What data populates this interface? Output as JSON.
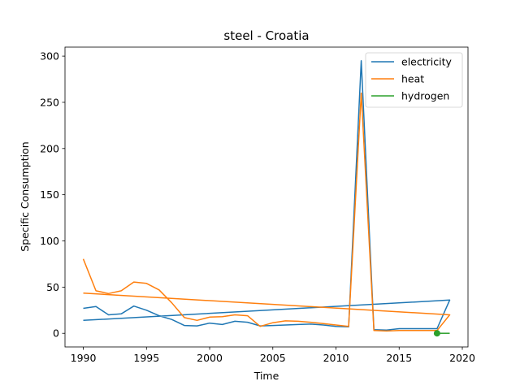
{
  "chart_data": {
    "type": "line",
    "title": "steel - Croatia",
    "xlabel": "Time",
    "ylabel": "Specific Consumption",
    "xlim": [
      1988.55,
      2020.45
    ],
    "ylim": [
      -14.75,
      309.75
    ],
    "xticks": [
      1990,
      1995,
      2000,
      2005,
      2010,
      2015,
      2020
    ],
    "yticks": [
      0,
      50,
      100,
      150,
      200,
      250,
      300
    ],
    "grid": false,
    "legend_position": "top-right",
    "series": [
      {
        "name": "electricity",
        "color": "#1f77b4",
        "points": [
          [
            1990,
            27
          ],
          [
            1991,
            29
          ],
          [
            1992,
            20
          ],
          [
            1993,
            21
          ],
          [
            1994,
            29.5
          ],
          [
            1995,
            25
          ],
          [
            1996,
            19
          ],
          [
            1997,
            15
          ],
          [
            1998,
            8.5
          ],
          [
            1999,
            8
          ],
          [
            2000,
            11
          ],
          [
            2001,
            9.5
          ],
          [
            2002,
            13
          ],
          [
            2003,
            12
          ],
          [
            2004,
            8
          ],
          [
            2005,
            8.5
          ],
          [
            2006,
            9
          ],
          [
            2007,
            9.5
          ],
          [
            2008,
            10
          ],
          [
            2009,
            9
          ],
          [
            2010,
            7.5
          ],
          [
            2011,
            7
          ],
          [
            2012,
            295
          ],
          [
            2013,
            4
          ],
          [
            2014,
            3.5
          ],
          [
            2015,
            5
          ],
          [
            2016,
            5
          ],
          [
            2017,
            5
          ],
          [
            2018,
            5
          ],
          [
            2019,
            36
          ],
          [
            1990,
            14
          ]
        ]
      },
      {
        "name": "heat",
        "color": "#ff7f0e",
        "points": [
          [
            1990,
            80.5
          ],
          [
            1991,
            46
          ],
          [
            1992,
            43
          ],
          [
            1993,
            46
          ],
          [
            1994,
            55.5
          ],
          [
            1995,
            54
          ],
          [
            1996,
            47
          ],
          [
            1997,
            33
          ],
          [
            1998,
            17
          ],
          [
            1999,
            14
          ],
          [
            2000,
            17.5
          ],
          [
            2001,
            18
          ],
          [
            2002,
            20
          ],
          [
            2003,
            19
          ],
          [
            2004,
            7.5
          ],
          [
            2005,
            11.5
          ],
          [
            2006,
            13.5
          ],
          [
            2007,
            13
          ],
          [
            2008,
            12
          ],
          [
            2009,
            10.5
          ],
          [
            2010,
            9
          ],
          [
            2011,
            7.5
          ],
          [
            2012,
            260
          ],
          [
            2013,
            3
          ],
          [
            2014,
            2.5
          ],
          [
            2015,
            3
          ],
          [
            2016,
            3
          ],
          [
            2017,
            3
          ],
          [
            2018,
            3
          ],
          [
            2019,
            20
          ],
          [
            1990,
            43.5
          ]
        ]
      },
      {
        "name": "hydrogen",
        "color": "#2ca02c",
        "points": [
          [
            2018,
            0
          ],
          [
            2019,
            0
          ]
        ],
        "marker_points": [
          [
            2018,
            0
          ]
        ]
      }
    ]
  }
}
